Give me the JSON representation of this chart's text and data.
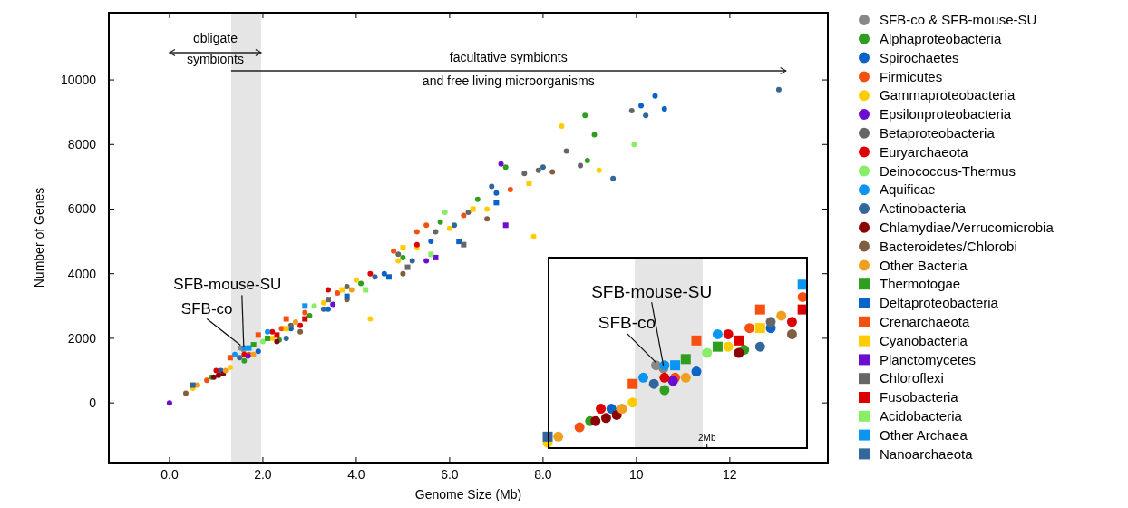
{
  "chart_data": {
    "type": "scatter",
    "xlabel": "Genome Size (Mb)",
    "ylabel": "Number of Genes",
    "xlim": [
      -1.3,
      14.1
    ],
    "ylim": [
      -1850,
      12080
    ],
    "xticks": [
      {
        "value": 0,
        "label": "0.0"
      },
      {
        "value": 2,
        "label": "2.0"
      },
      {
        "value": 4,
        "label": "4.0"
      },
      {
        "value": 6,
        "label": "6.0"
      },
      {
        "value": 8,
        "label": "8.0"
      },
      10,
      12
    ],
    "yticks": [
      0,
      2000,
      4000,
      6000,
      8000,
      10000
    ],
    "grid": false,
    "legend": "right",
    "bands": [
      {
        "axis": "x",
        "from": 1.32,
        "to": 1.96,
        "color": "#e5e5e5"
      }
    ],
    "annotations": [
      "obligate\nsymbionts",
      "facultative symbionts\nand free living microorganisms",
      {
        "text": "SFB-mouse-SU",
        "x": 1.59,
        "y": 1650
      },
      {
        "text": "SFB-co",
        "x": 1.52,
        "y": 1700
      },
      "SFB-mouse-SU",
      "SFB-co",
      "2Mb"
    ],
    "series": [
      {
        "name": "SFB-co & SFB-mouse-SU",
        "color": "#888888",
        "marker": "circle",
        "x": [
          1.52,
          1.59
        ],
        "values": [
          1700,
          1650
        ]
      },
      {
        "name": "Alphaproteobacteria",
        "color": "#2e9e1e",
        "marker": "circle",
        "x": [
          0.9,
          1.6,
          2.35,
          3.0,
          4.1,
          5.0,
          5.8,
          6.6,
          7.2,
          8.9,
          9.1,
          8.95
        ],
        "values": [
          800,
          1300,
          1950,
          2700,
          3700,
          4500,
          5600,
          6300,
          7300,
          8900,
          8300,
          7500
        ]
      },
      {
        "name": "Spirochaetes",
        "color": "#0a64c8",
        "marker": "circle",
        "x": [
          1.1,
          1.9,
          2.6,
          3.4,
          4.6,
          5.6,
          7.0,
          10.1,
          10.4,
          10.6
        ],
        "values": [
          1000,
          1600,
          2300,
          2900,
          4000,
          5000,
          6500,
          9200,
          9500,
          9100
        ]
      },
      {
        "name": "Firmicutes",
        "color": "#f5500f",
        "marker": "circle",
        "x": [
          0.8,
          1.7,
          2.4,
          2.9,
          3.6,
          4.8,
          5.3,
          5.5,
          6.3,
          7.3
        ],
        "values": [
          700,
          1500,
          2300,
          2800,
          3400,
          4700,
          5300,
          5500,
          5800,
          6600
        ]
      },
      {
        "name": "Gammaproteobacteria",
        "color": "#ffcc00",
        "marker": "circle",
        "x": [
          0.5,
          1.3,
          2.2,
          3.3,
          4.0,
          4.3,
          4.9,
          5.3,
          6.0,
          6.8,
          7.8,
          8.4,
          9.2
        ],
        "values": [
          450,
          1100,
          2000,
          3100,
          3800,
          2600,
          4400,
          4800,
          5400,
          6000,
          5150,
          8570,
          7200
        ]
      },
      {
        "name": "Epsilonproteobacteria",
        "color": "#6a0dd0",
        "marker": "circle",
        "x": [
          0.0,
          1.68,
          3.5,
          5.5,
          7.1
        ],
        "values": [
          0,
          1450,
          3050,
          4400,
          7400
        ]
      },
      {
        "name": "Betaproteobacteria",
        "color": "#666666",
        "marker": "circle",
        "x": [
          2.6,
          3.8,
          4.9,
          5.7,
          6.4,
          7.6,
          8.5,
          9.9,
          7.9,
          8.8
        ],
        "values": [
          2400,
          3600,
          4600,
          5300,
          5900,
          7100,
          7800,
          9050,
          7200,
          7350
        ]
      },
      {
        "name": "Euryarchaeota",
        "color": "#dd0000",
        "marker": "circle",
        "x": [
          1.0,
          1.6,
          2.2,
          2.8,
          3.4,
          4.3,
          5.3
        ],
        "values": [
          1000,
          1500,
          2200,
          2400,
          3500,
          4000,
          4900
        ]
      },
      {
        "name": "Deinococcus-Thermus",
        "color": "#88ee66",
        "marker": "circle",
        "x": [
          2.0,
          3.1,
          5.9,
          9.95
        ],
        "values": [
          1900,
          3000,
          5900,
          8000
        ]
      },
      {
        "name": "Aquificae",
        "color": "#0a96f0",
        "marker": "circle",
        "x": [
          1.4,
          1.6,
          2.1
        ],
        "values": [
          1500,
          1700,
          2200
        ]
      },
      {
        "name": "Actinobacteria",
        "color": "#33669a",
        "marker": "circle",
        "x": [
          1.5,
          2.5,
          3.3,
          4.4,
          5.2,
          6.1,
          6.9,
          8.0,
          9.5,
          10.2,
          13.05
        ],
        "values": [
          1400,
          2000,
          2900,
          3900,
          4400,
          5500,
          6700,
          7300,
          6950,
          8900,
          9700
        ]
      },
      {
        "name": "Chlamydiae/Verrucomicrobia",
        "color": "#8b0000",
        "marker": "circle",
        "x": [
          0.95,
          1.05,
          1.15,
          2.3
        ],
        "values": [
          800,
          850,
          900,
          1900
        ]
      },
      {
        "name": "Bacteroidetes/Chlorobi",
        "color": "#7f5f3f",
        "marker": "circle",
        "x": [
          0.35,
          2.8,
          3.8,
          5.0,
          6.8,
          8.2
        ],
        "values": [
          300,
          2200,
          3200,
          4000,
          5700,
          7150
        ]
      },
      {
        "name": "Other Bacteria",
        "color": "#f0a020",
        "marker": "circle",
        "x": [
          0.6,
          1.2,
          1.8,
          2.7,
          3.9
        ],
        "values": [
          550,
          1000,
          1500,
          2500,
          3500
        ]
      },
      {
        "name": "Thermotogae",
        "color": "#2e9e1e",
        "marker": "square",
        "x": [
          1.8,
          2.1
        ],
        "values": [
          1800,
          2000
        ]
      },
      {
        "name": "Deltaproteobacteria",
        "color": "#0a64c8",
        "marker": "square",
        "x": [
          3.8,
          4.7,
          6.2,
          7.0
        ],
        "values": [
          3300,
          3900,
          5000,
          6200
        ]
      },
      {
        "name": "Crenarchaeota",
        "color": "#f5500f",
        "marker": "square",
        "x": [
          1.3,
          1.9,
          2.5
        ],
        "values": [
          1400,
          2100,
          2600
        ]
      },
      {
        "name": "Cyanobacteria",
        "color": "#ffcc00",
        "marker": "square",
        "x": [
          2.5,
          3.7,
          5.0,
          6.5,
          7.7
        ],
        "values": [
          2300,
          3500,
          4800,
          6000,
          6800
        ]
      },
      {
        "name": "Planctomycetes",
        "color": "#6a0dd0",
        "marker": "square",
        "x": [
          5.7,
          7.2
        ],
        "values": [
          4500,
          5500
        ]
      },
      {
        "name": "Chloroflexi",
        "color": "#666666",
        "marker": "square",
        "x": [
          3.4,
          5.1,
          6.3
        ],
        "values": [
          3200,
          4200,
          4900
        ]
      },
      {
        "name": "Fusobacteria",
        "color": "#dd0000",
        "marker": "square",
        "x": [
          2.3,
          2.9
        ],
        "values": [
          2100,
          2600
        ]
      },
      {
        "name": "Acidobacteria",
        "color": "#88ee66",
        "marker": "square",
        "x": [
          4.2,
          5.6
        ],
        "values": [
          3500,
          4600
        ]
      },
      {
        "name": "Other Archaea",
        "color": "#0a96f0",
        "marker": "square",
        "x": [
          1.7,
          2.9
        ],
        "values": [
          1700,
          3000
        ]
      },
      {
        "name": "Nanoarchaeota",
        "color": "#33669a",
        "marker": "square",
        "x": [
          0.5
        ],
        "values": [
          550
        ]
      }
    ]
  }
}
